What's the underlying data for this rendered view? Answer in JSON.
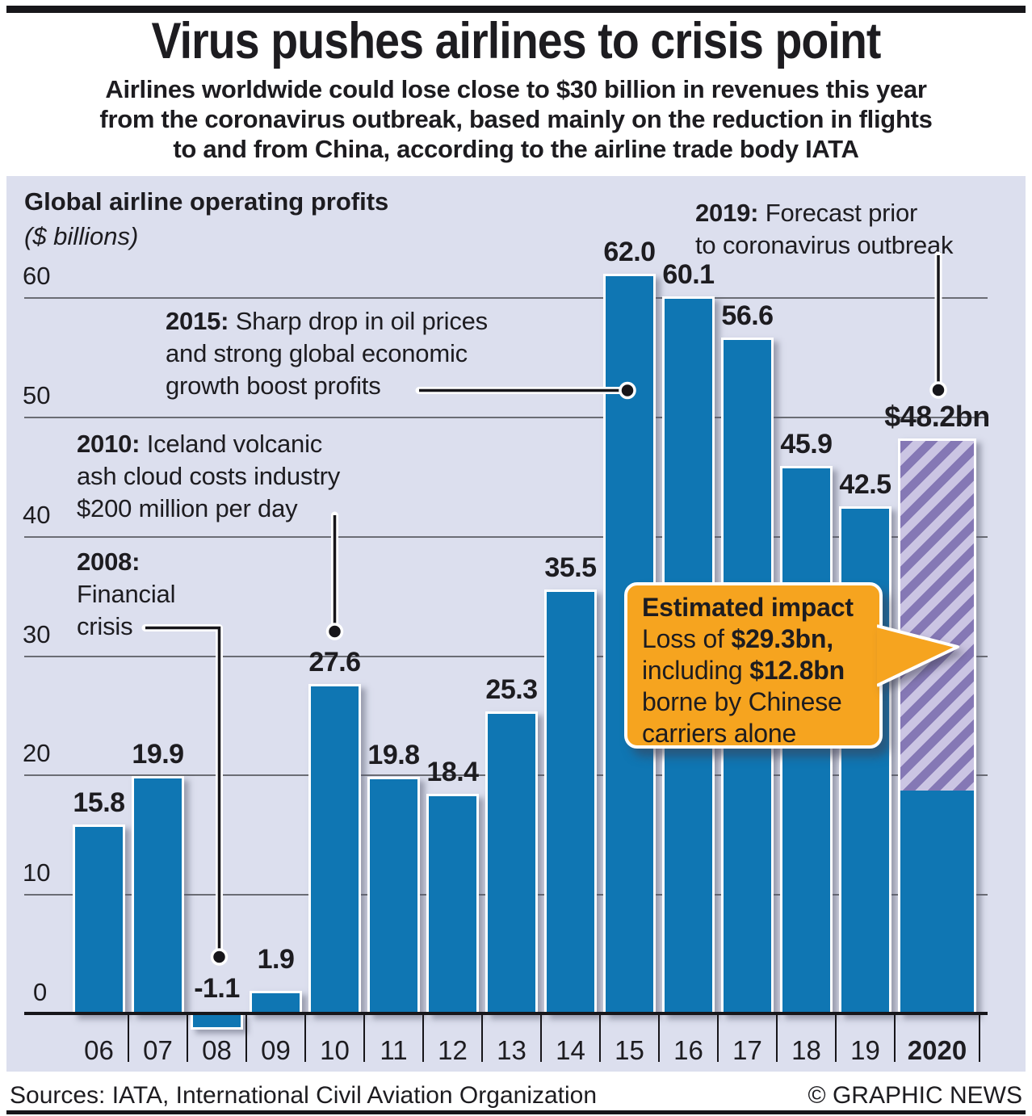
{
  "header": {
    "title": "Virus pushes airlines to crisis point",
    "subtitle_lines": [
      "Airlines worldwide could lose close to $30 billion in revenues this year",
      "from the coronavirus outbreak, based mainly on the reduction in flights",
      "to and from China, according to the airline trade body IATA"
    ]
  },
  "chart_data": {
    "type": "bar",
    "title": "Global airline operating profits",
    "unit_label": "($ billions)",
    "categories": [
      "06",
      "07",
      "08",
      "09",
      "10",
      "11",
      "12",
      "13",
      "14",
      "15",
      "16",
      "17",
      "18",
      "19",
      "2020"
    ],
    "values": [
      15.8,
      19.9,
      -1.1,
      1.9,
      27.6,
      19.8,
      18.4,
      25.3,
      35.5,
      62.0,
      60.1,
      56.6,
      45.9,
      42.5,
      48.2
    ],
    "value_labels": [
      "15.8",
      "19.9",
      "-1.1",
      "1.9",
      "27.6",
      "19.8",
      "18.4",
      "25.3",
      "35.5",
      "62.0",
      "60.1",
      "56.6",
      "45.9",
      "42.5",
      "$48.2bn"
    ],
    "y_ticks": [
      0,
      10,
      20,
      30,
      40,
      50,
      60
    ],
    "ylim": [
      -2,
      65
    ],
    "grid": true,
    "legend_position": "none",
    "forecast_2020": {
      "category": "2020",
      "label": "$48.2bn",
      "total": 48.2,
      "hatched_loss_portion": 29.3,
      "solid_remaining_portion": 18.9,
      "style": "diagonal-hatch"
    },
    "colors": {
      "bar": "#0f76b3",
      "hatch_dark": "#8578b5",
      "hatch_light": "#cbc5e3",
      "panel_bg": "#dcdfee",
      "gridline": "#6b6d75",
      "callout_bg": "#f6a41f",
      "line_black": "#17161a"
    }
  },
  "annotations": {
    "y2015": {
      "prefix": "2015:",
      "line1": " Sharp drop in oil prices",
      "line2": "and strong global economic",
      "line3": "growth boost profits"
    },
    "y2010": {
      "prefix": "2010:",
      "line1": " Iceland volcanic",
      "line2": "ash cloud costs industry",
      "line3": "$200 million per day"
    },
    "y2008": {
      "prefix": "2008:",
      "line1": "",
      "line2": "Financial",
      "line3": "crisis"
    },
    "y2019": {
      "prefix": "2019:",
      "line1": " Forecast prior",
      "line2": "to coronavirus outbreak"
    }
  },
  "callout": {
    "title": "Estimated impact",
    "l1_pre": "Loss of ",
    "l1_bold": "$29.3bn,",
    "l2_pre": "including ",
    "l2_bold": "$12.8bn",
    "l3": "borne by Chinese",
    "l4": "carriers alone"
  },
  "footer": {
    "sources": "Sources: IATA, International Civil Aviation Organization",
    "credit": "© GRAPHIC NEWS"
  }
}
